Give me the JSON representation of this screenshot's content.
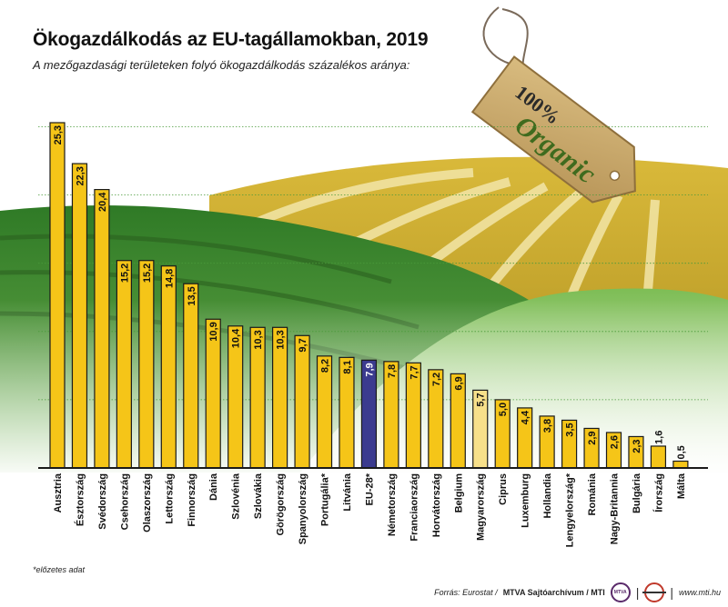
{
  "header": {
    "title": "Ökogazdálkodás az EU-tagállamokban, 2019",
    "subtitle": "A mezőgazdasági területeken folyó ökogazdálkodás százalékos aránya:"
  },
  "tag": {
    "line1": "100%",
    "line2": "Organic"
  },
  "footnote": "*előzetes adat",
  "footer": {
    "source_label": "Forrás: Eurostat / ",
    "source_bold": "MTVA Sajtóarchívum / MTI",
    "logo_text": "MTVA",
    "url": "www.mti.hu"
  },
  "colors": {
    "bar": "#f5c518",
    "bar_highlight": "#3b3b8f",
    "bar_hungary": "#f7e08a",
    "bar_outline": "#1a1a1a",
    "grid": "#4a9a3a",
    "hill_dark": "#3c8a2c",
    "hill_light": "#8cc46a",
    "field_gold": "#c8a52a",
    "tag": "#c9a86a",
    "tag_text": "#3f6b1e"
  },
  "chart_data": {
    "type": "bar",
    "title": "Ökogazdálkodás az EU-tagállamokban, 2019",
    "xlabel": "",
    "ylabel": "",
    "ylim": [
      0,
      25.3
    ],
    "grid": true,
    "value_labels": true,
    "categories": [
      "Ausztria",
      "Észtország",
      "Svédország",
      "Csehország",
      "Olaszország",
      "Lettország",
      "Finnország",
      "Dánia",
      "Szlovénia",
      "Szlovákia",
      "Görögország",
      "Spanyolország",
      "Portugália*",
      "Litvánia",
      "EU-28*",
      "Németország",
      "Franciaország",
      "Horvátország",
      "Belgium",
      "Magyarország",
      "Ciprus",
      "Luxemburg",
      "Hollandia",
      "Lengyelország*",
      "Románia",
      "Nagy-Britannia",
      "Bulgária",
      "Írország",
      "Málta"
    ],
    "values": [
      25.3,
      22.3,
      20.4,
      15.2,
      15.2,
      14.8,
      13.5,
      10.9,
      10.4,
      10.3,
      10.3,
      9.7,
      8.2,
      8.1,
      7.9,
      7.8,
      7.7,
      7.2,
      6.9,
      5.7,
      5.0,
      4.4,
      3.8,
      3.5,
      2.9,
      2.6,
      2.3,
      1.6,
      0.5
    ],
    "value_labels_text": [
      "25,3",
      "22,3",
      "20,4",
      "15,2",
      "15,2",
      "14,8",
      "13,5",
      "10,9",
      "10,4",
      "10,3",
      "10,3",
      "9,7",
      "8,2",
      "8,1",
      "7,9",
      "7,8",
      "7,7",
      "7,2",
      "6,9",
      "5,7",
      "5,0",
      "4,4",
      "3,8",
      "3,5",
      "2,9",
      "2,6",
      "2,3",
      "1,6",
      "0,5"
    ],
    "highlight": [
      "EU-28*"
    ],
    "secondary_highlight": [
      "Magyarország"
    ]
  }
}
